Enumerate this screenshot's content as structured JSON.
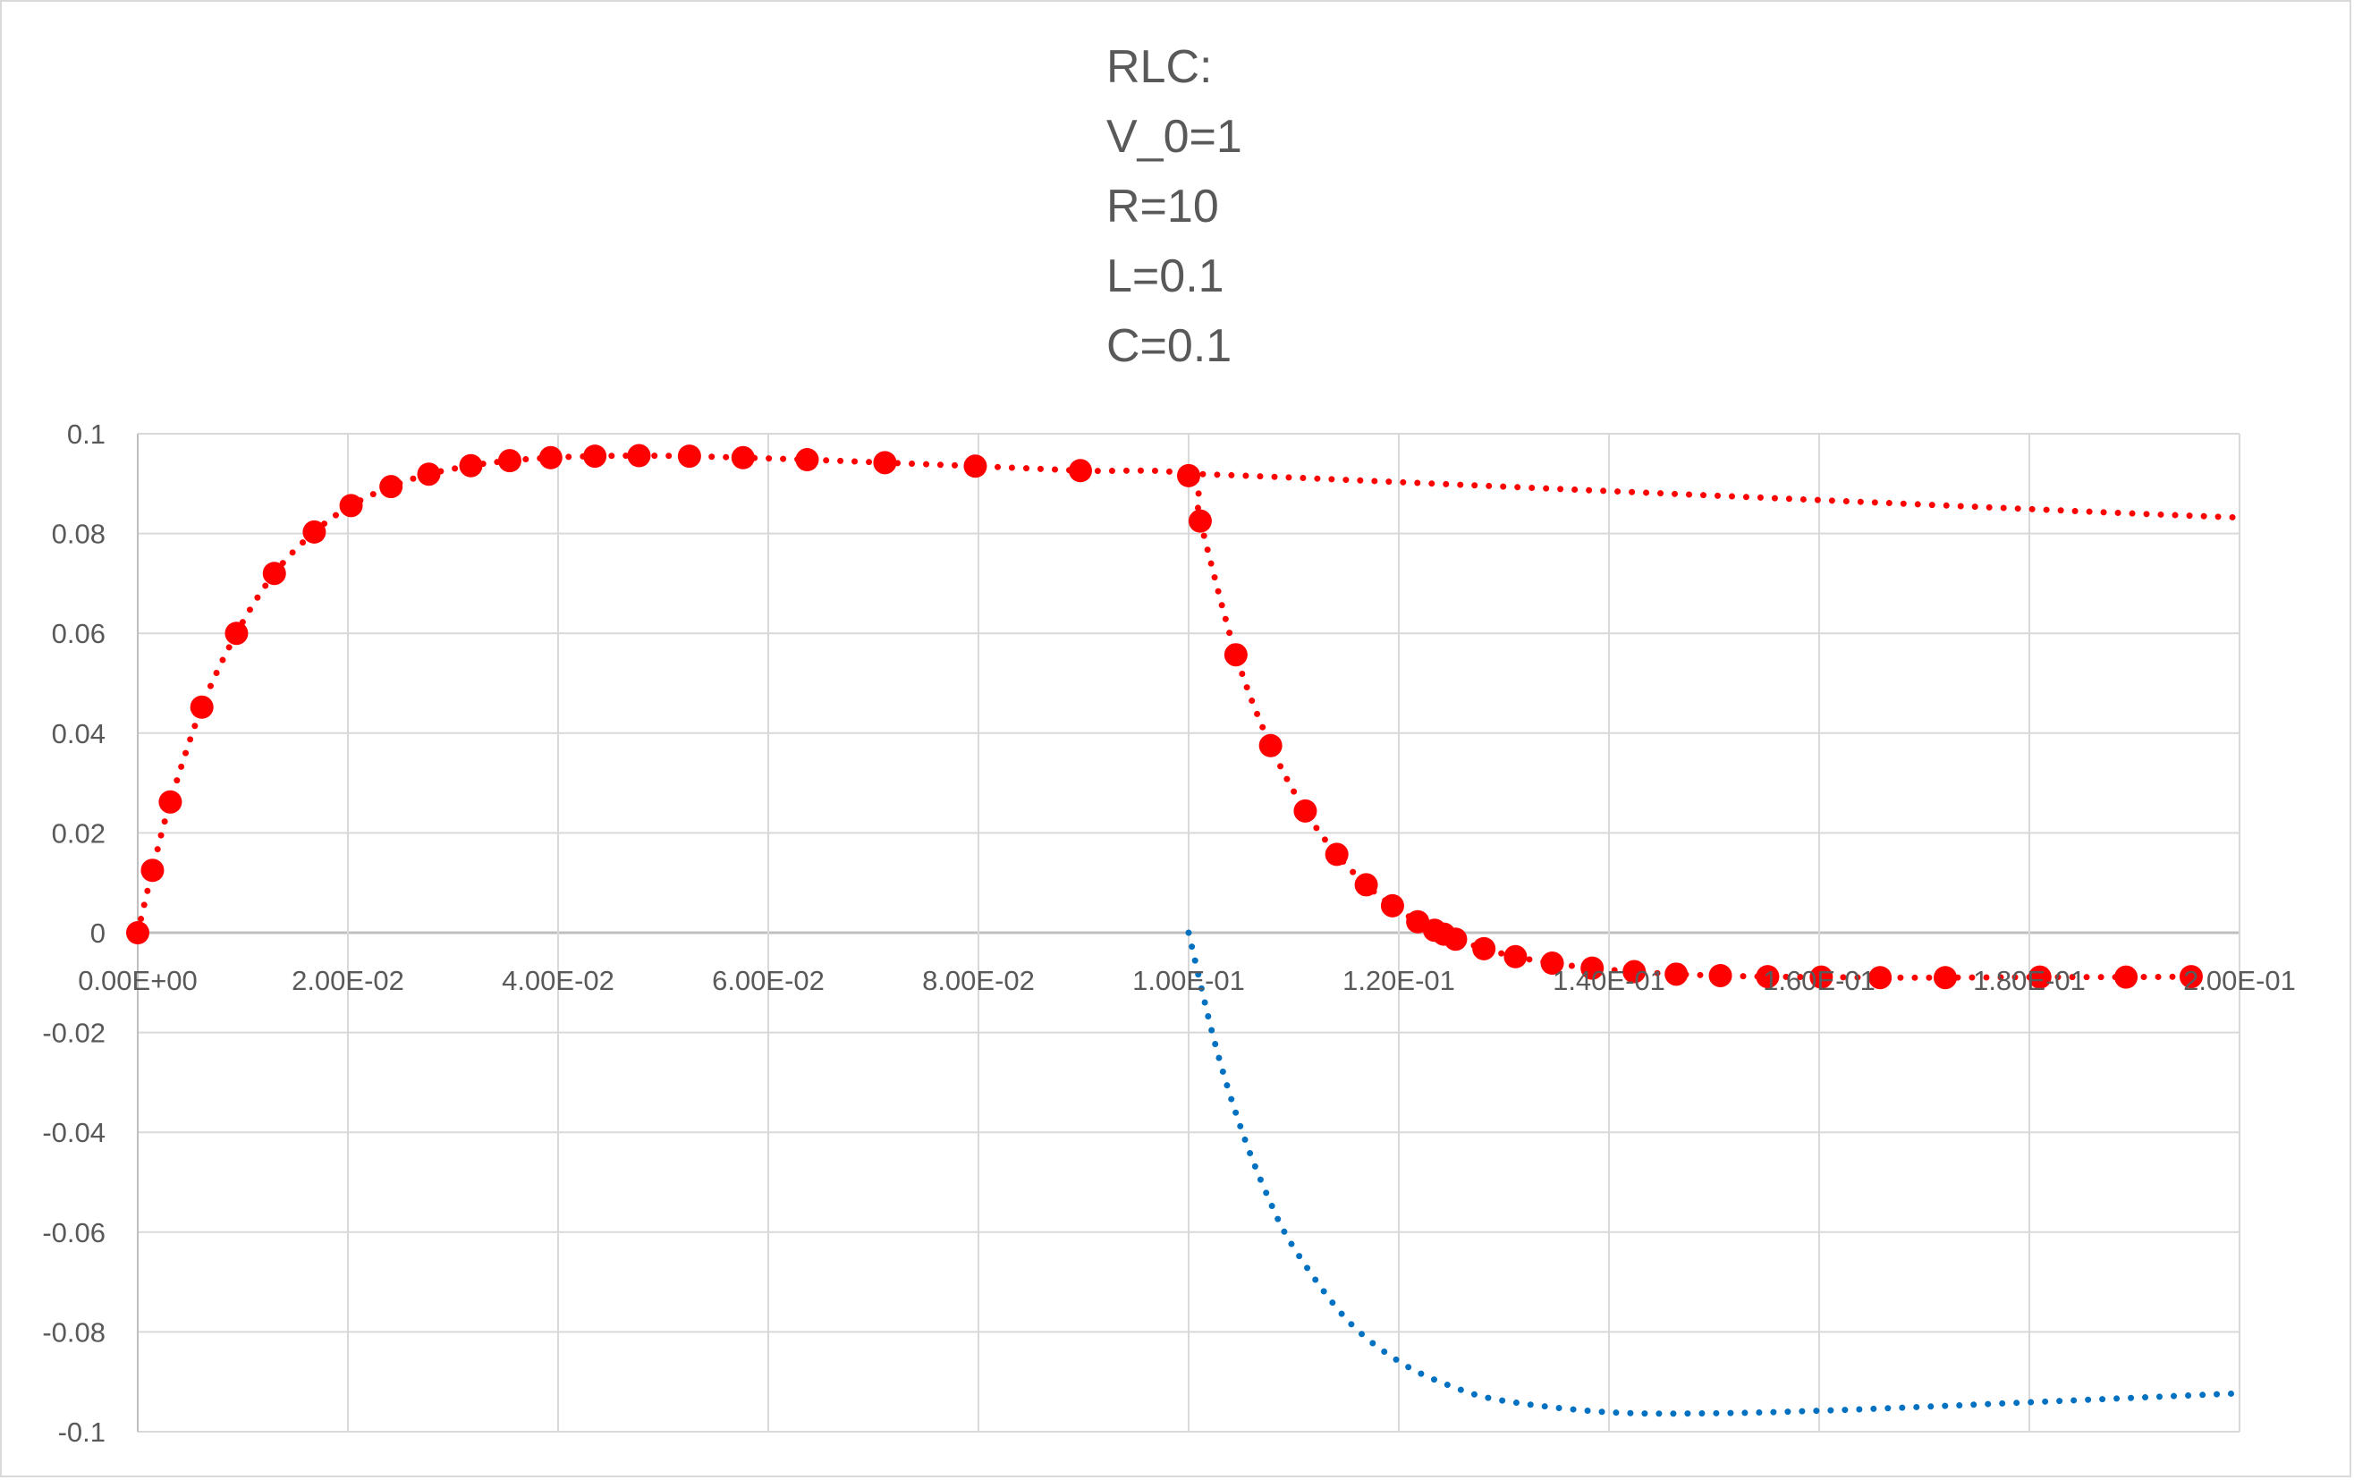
{
  "chart_data": {
    "type": "scatter",
    "title_lines": [
      "RLC:",
      "V_0=1",
      "R=10",
      "L=0.1",
      "C=0.1"
    ],
    "xlabel": "",
    "ylabel": "",
    "xlim": [
      0,
      0.2
    ],
    "ylim": [
      -0.1,
      0.1
    ],
    "x_ticks": [
      0,
      0.02,
      0.04,
      0.06,
      0.08,
      0.1,
      0.12,
      0.14,
      0.16,
      0.18,
      0.2
    ],
    "x_tick_labels": [
      "0.00E+00",
      "2.00E-02",
      "4.00E-02",
      "6.00E-02",
      "8.00E-02",
      "1.00E-01",
      "1.20E-01",
      "1.40E-01",
      "1.60E-01",
      "1.80E-01",
      "2.00E-01"
    ],
    "y_ticks": [
      0.1,
      0.08,
      0.06,
      0.04,
      0.02,
      0,
      -0.02,
      -0.04,
      -0.06,
      -0.08,
      -0.1
    ],
    "y_tick_labels": [
      "0.1",
      "0.08",
      "0.06",
      "0.04",
      "0.02",
      "0",
      "-0.02",
      "-0.04",
      "-0.06",
      "-0.08",
      "-0.1"
    ],
    "grid": true,
    "legend": "none",
    "colors": {
      "markers": "#FF0000",
      "charging_curve": "#FF0000",
      "discharge_curve": "#0070C0",
      "grid": "#D9D9D9",
      "text": "#595959"
    },
    "series": [
      {
        "style": "markers-with-dotted-line",
        "color": "#FF0000",
        "x": [
          0,
          0.0014,
          0.0031,
          0.0061,
          0.0094,
          0.013,
          0.0168,
          0.0203,
          0.0241,
          0.0277,
          0.0317,
          0.0354,
          0.0393,
          0.0435,
          0.0477,
          0.0525,
          0.0576,
          0.0637,
          0.0711,
          0.0797,
          0.0897,
          0.1,
          0.1011,
          0.1045,
          0.1078,
          0.1111,
          0.1141,
          0.1169,
          0.1194,
          0.1218,
          0.1234,
          0.1243,
          0.1254,
          0.1281,
          0.1311,
          0.1346,
          0.1384,
          0.1424,
          0.1464,
          0.1506,
          0.1551,
          0.1602,
          0.1658,
          0.172,
          0.181,
          0.1892,
          0.1954
        ],
        "y": [
          0,
          0.0125,
          0.0262,
          0.0452,
          0.06,
          0.072,
          0.0803,
          0.0856,
          0.0894,
          0.0919,
          0.0936,
          0.0946,
          0.0952,
          0.0955,
          0.0956,
          0.0955,
          0.0952,
          0.0948,
          0.0942,
          0.0935,
          0.0926,
          0.0916,
          0.0825,
          0.0557,
          0.0375,
          0.0244,
          0.0157,
          0.0096,
          0.0054,
          0.0022,
          0.0005,
          -0.0003,
          -0.0013,
          -0.0032,
          -0.0048,
          -0.0061,
          -0.0071,
          -0.0078,
          -0.0083,
          -0.0086,
          -0.0088,
          -0.0089,
          -0.009,
          -0.009,
          -0.0089,
          -0.0089,
          -0.0088
        ]
      },
      {
        "style": "dotted-line",
        "color": "#FF0000",
        "x": [
          0.1,
          0.11,
          0.12,
          0.13,
          0.14,
          0.15,
          0.16,
          0.17,
          0.18,
          0.19,
          0.2
        ],
        "y": [
          0.092,
          0.0912,
          0.0903,
          0.0894,
          0.0885,
          0.0876,
          0.0867,
          0.0858,
          0.0849,
          0.084,
          0.0832
        ]
      },
      {
        "style": "dotted-line",
        "color": "#0070C0",
        "x": [
          0.1,
          0.1025,
          0.105,
          0.1075,
          0.11,
          0.115,
          0.12,
          0.125,
          0.13,
          0.14,
          0.15,
          0.16,
          0.17,
          0.18,
          0.19,
          0.2
        ],
        "y": [
          0,
          -0.0221,
          -0.0393,
          -0.0527,
          -0.0631,
          -0.0774,
          -0.0859,
          -0.0909,
          -0.0938,
          -0.0961,
          -0.0963,
          -0.0958,
          -0.095,
          -0.0941,
          -0.0932,
          -0.0923
        ]
      }
    ]
  }
}
